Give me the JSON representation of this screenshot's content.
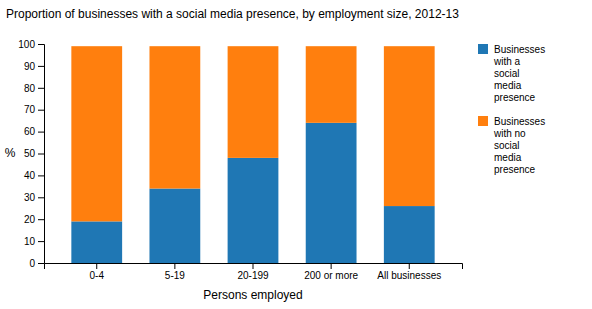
{
  "chart_data": {
    "type": "bar",
    "stacked": true,
    "title": "Proportion of businesses with a social media presence, by employment size, 2012-13",
    "xlabel": "Persons employed",
    "ylabel": "%",
    "categories": [
      "0-4",
      "5-19",
      "20-199",
      "200 or more",
      "All businesses"
    ],
    "series": [
      {
        "name": "Businesses\nwith a\nsocial\nmedia\npresence",
        "values": [
          19,
          34,
          48,
          64,
          26
        ]
      },
      {
        "name": "Businesses\nwith no\nsocial\nmedia\npresence",
        "values": [
          80,
          65,
          51,
          35,
          73
        ]
      }
    ],
    "ylim": [
      0,
      100
    ],
    "yticks": [
      0,
      10,
      20,
      30,
      40,
      50,
      60,
      70,
      80,
      90,
      100
    ],
    "grid": false,
    "legend": "right"
  }
}
